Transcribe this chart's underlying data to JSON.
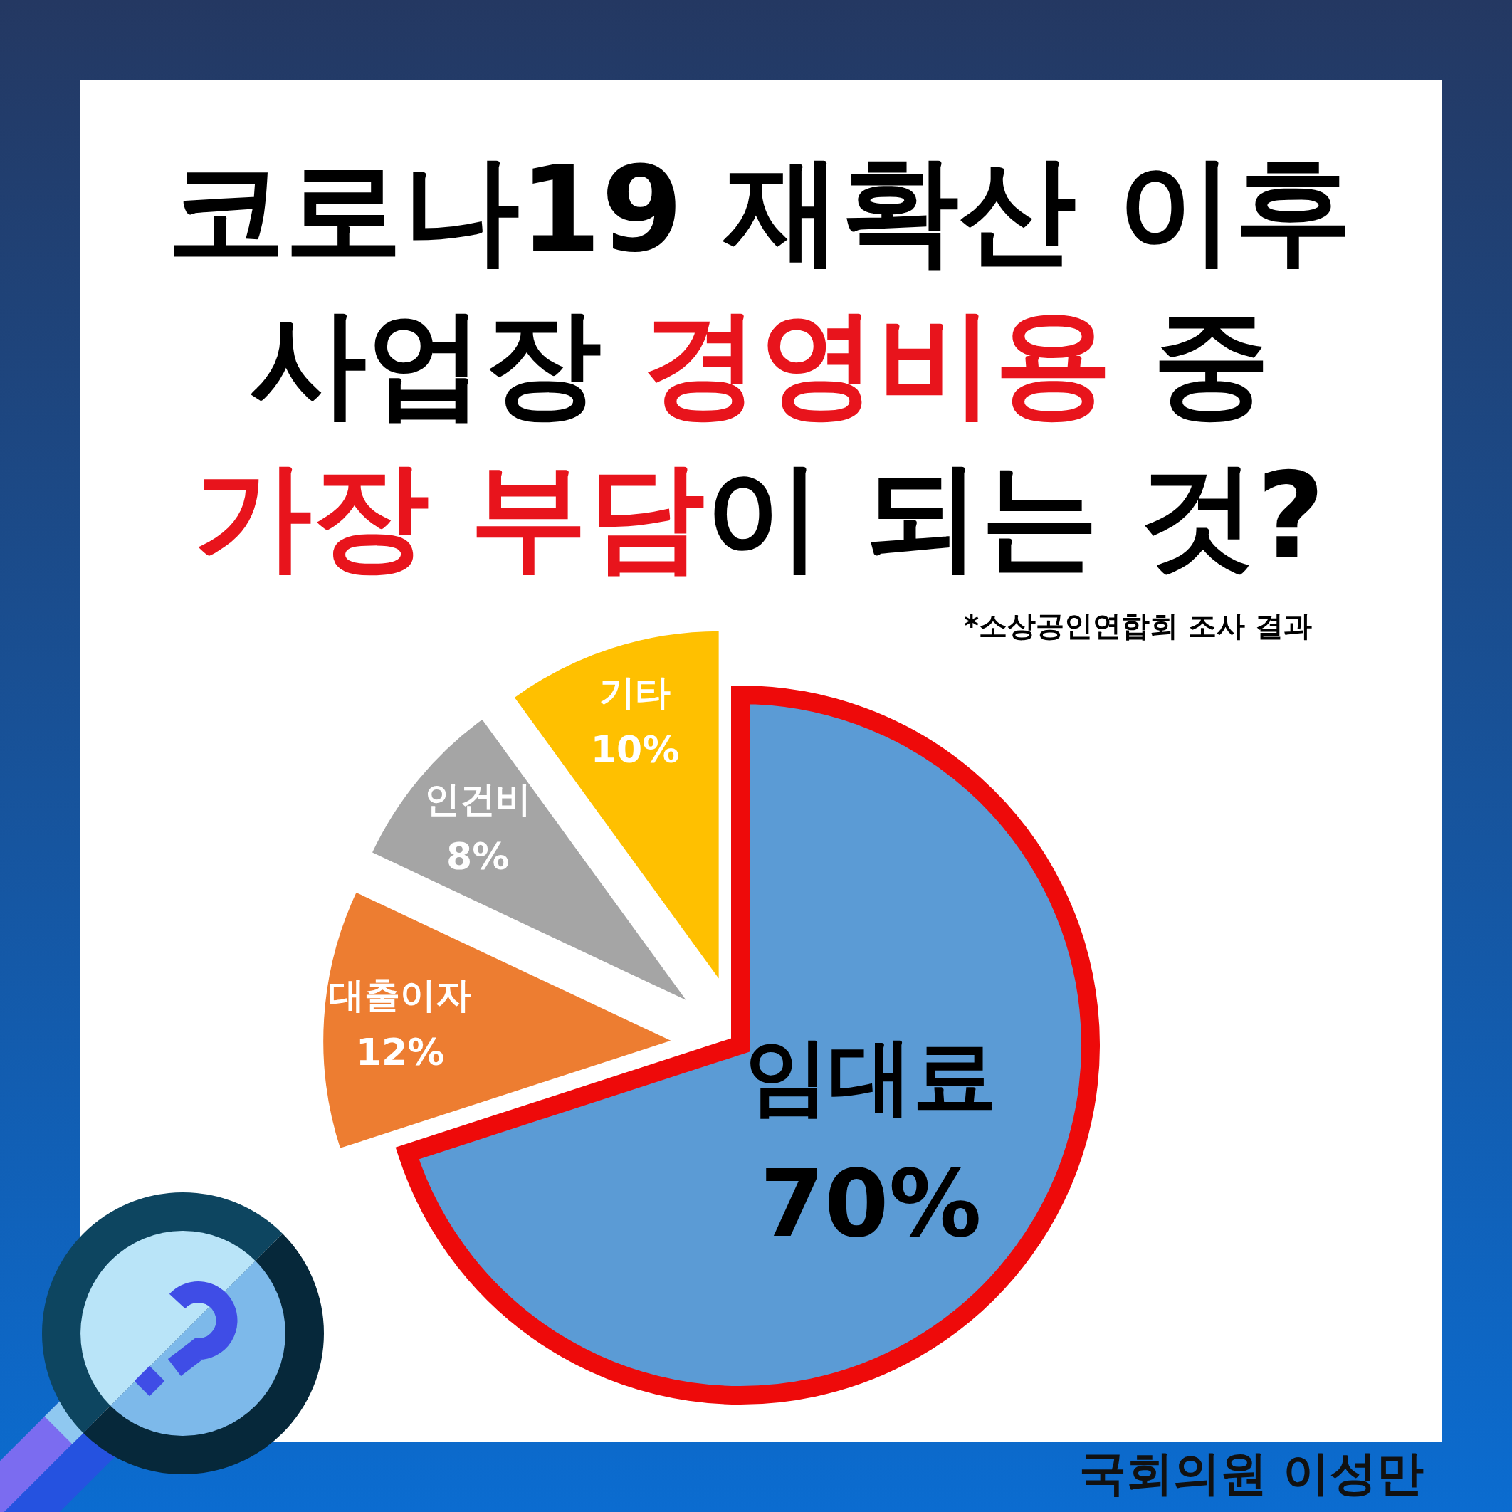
{
  "chart_data": {
    "type": "pie",
    "title": "코로나19 재확산 이후\n사업장 경영비용 중\n가장 부담이 되는 것?",
    "categories": [
      "임대료",
      "대출이자",
      "인건비",
      "기타"
    ],
    "values": [
      70,
      12,
      8,
      10
    ],
    "colors": [
      "#5b9bd5",
      "#ed7d31",
      "#a5a5a5",
      "#ffc000"
    ],
    "value_labels": [
      "70%",
      "12%",
      "8%",
      "10%"
    ],
    "annotations": [
      "*소상공인연합회 조사 결과",
      "국회의원 이성만"
    ]
  }
}
